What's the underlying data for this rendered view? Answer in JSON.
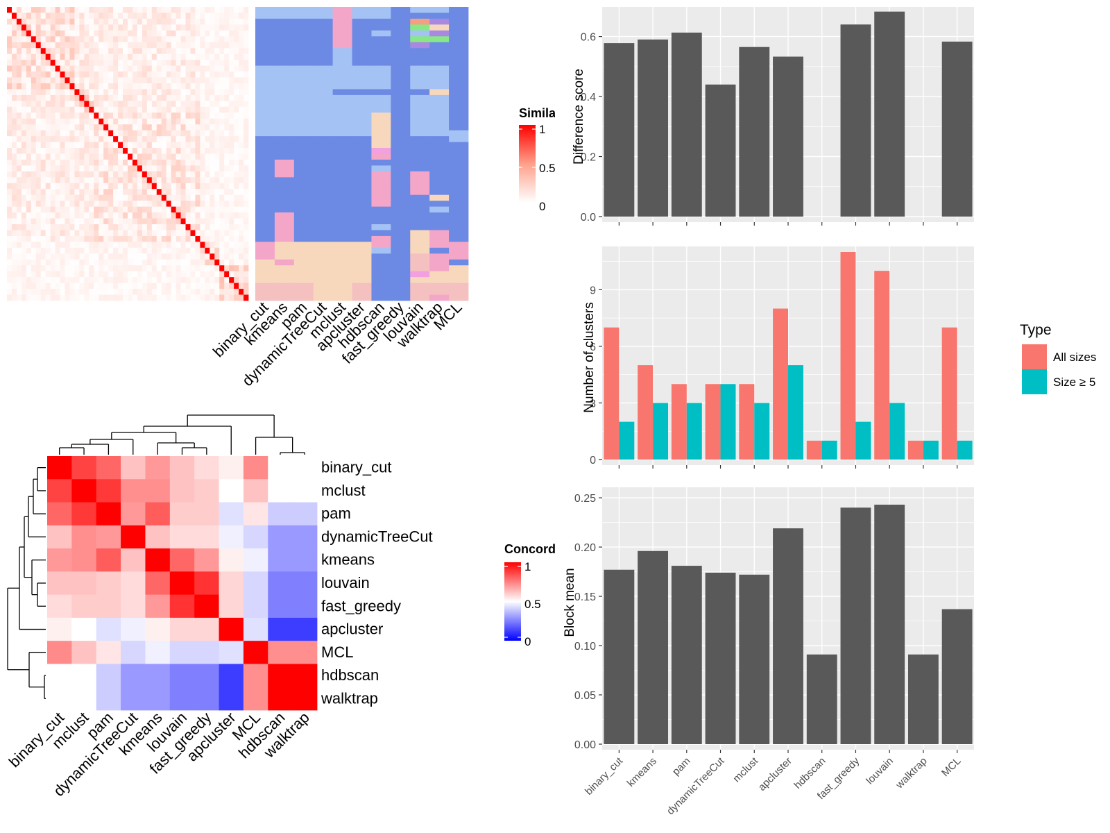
{
  "colors": {
    "panel_bg": "#ebebeb",
    "grid": "#ffffff",
    "bar_dark": "#595959",
    "all_sizes": "#f8766d",
    "size_ge5": "#00bfc4",
    "heat_high": "#ff0000",
    "heat_mid": "#ffffff",
    "heat_low": "#0000ff",
    "cluster_blue_dark": "#6c8ae4",
    "cluster_blue_light": "#a4c2f4",
    "cluster_pink": "#f4a6c8",
    "cluster_peach": "#f8d8bc",
    "cluster_salmon": "#f4c0c0",
    "cluster_magenta": "#f2a0e0",
    "cluster_green": "#88e888",
    "cluster_purple": "#a888e0",
    "cluster_orange": "#f4a080"
  },
  "methods": [
    "binary_cut",
    "kmeans",
    "pam",
    "dynamicTreeCut",
    "mclust",
    "apcluster",
    "hdbscan",
    "fast_greedy",
    "louvain",
    "walktrap",
    "MCL"
  ],
  "chart_data": [
    {
      "type": "heatmap",
      "id": "similarity-matrix",
      "legend_title": "Similarity",
      "legend_ticks": [
        "1",
        "0.5",
        "0"
      ],
      "n_terms": 50,
      "note_values": "term-by-term similarity, 1 on diagonal"
    },
    {
      "type": "heatmap",
      "id": "cluster-assignments",
      "columns": [
        "binary_cut",
        "kmeans",
        "pam",
        "dynamicTreeCut",
        "mclust",
        "apcluster",
        "hdbscan",
        "fast_greedy",
        "louvain",
        "walktrap",
        "MCL"
      ],
      "n_rows": 50
    },
    {
      "type": "heatmap",
      "id": "concordance",
      "legend_title": "Concordance",
      "legend_ticks": [
        "1",
        "0.5",
        "0"
      ],
      "order": [
        "binary_cut",
        "mclust",
        "pam",
        "dynamicTreeCut",
        "kmeans",
        "louvain",
        "fast_greedy",
        "apcluster",
        "MCL",
        "hdbscan",
        "walktrap"
      ],
      "values": [
        [
          1.0,
          0.87,
          0.8,
          0.62,
          0.7,
          0.62,
          0.57,
          0.53,
          0.73,
          0.5,
          0.5
        ],
        [
          0.87,
          1.0,
          0.89,
          0.72,
          0.72,
          0.62,
          0.6,
          0.5,
          0.62,
          0.5,
          0.5
        ],
        [
          0.8,
          0.89,
          1.0,
          0.7,
          0.82,
          0.6,
          0.6,
          0.44,
          0.55,
          0.4,
          0.4
        ],
        [
          0.62,
          0.72,
          0.7,
          1.0,
          0.62,
          0.57,
          0.57,
          0.47,
          0.42,
          0.3,
          0.3
        ],
        [
          0.7,
          0.72,
          0.82,
          0.62,
          1.0,
          0.8,
          0.7,
          0.53,
          0.47,
          0.3,
          0.3
        ],
        [
          0.62,
          0.62,
          0.6,
          0.57,
          0.8,
          1.0,
          0.9,
          0.58,
          0.42,
          0.25,
          0.25
        ],
        [
          0.57,
          0.6,
          0.6,
          0.57,
          0.7,
          0.9,
          1.0,
          0.58,
          0.42,
          0.25,
          0.25
        ],
        [
          0.53,
          0.5,
          0.44,
          0.47,
          0.53,
          0.58,
          0.58,
          1.0,
          0.44,
          0.12,
          0.12
        ],
        [
          0.73,
          0.62,
          0.55,
          0.42,
          0.47,
          0.42,
          0.42,
          0.44,
          1.0,
          0.72,
          0.72
        ],
        [
          0.5,
          0.5,
          0.4,
          0.3,
          0.3,
          0.25,
          0.25,
          0.12,
          0.72,
          1.0,
          1.0
        ],
        [
          0.5,
          0.5,
          0.4,
          0.3,
          0.3,
          0.25,
          0.25,
          0.12,
          0.72,
          1.0,
          1.0
        ]
      ]
    },
    {
      "type": "bar",
      "id": "difference-score",
      "categories": [
        "binary_cut",
        "kmeans",
        "pam",
        "dynamicTreeCut",
        "mclust",
        "apcluster",
        "hdbscan",
        "fast_greedy",
        "louvain",
        "walktrap",
        "MCL"
      ],
      "values": [
        0.578,
        0.59,
        0.613,
        0.44,
        0.565,
        0.533,
        null,
        0.64,
        0.683,
        null,
        0.583
      ],
      "ylabel": "Difference score",
      "ylim": [
        0,
        0.68
      ],
      "yticks": [
        0.0,
        0.2,
        0.4,
        0.6
      ],
      "ytick_labels": [
        "0.0",
        "0.2",
        "0.4",
        "0.6"
      ]
    },
    {
      "type": "bar",
      "id": "number-of-clusters",
      "categories": [
        "binary_cut",
        "kmeans",
        "pam",
        "dynamicTreeCut",
        "mclust",
        "apcluster",
        "hdbscan",
        "fast_greedy",
        "louvain",
        "walktrap",
        "MCL"
      ],
      "series": [
        {
          "name": "All sizes",
          "values": [
            7,
            5,
            4,
            4,
            4,
            8,
            1,
            11,
            10,
            1,
            7
          ]
        },
        {
          "name": "Size ≥ 5",
          "values": [
            2,
            3,
            3,
            4,
            3,
            5,
            1,
            2,
            3,
            1,
            1
          ]
        }
      ],
      "ylabel": "Number of clusters",
      "ylim": [
        0,
        11
      ],
      "yticks": [
        0,
        3,
        6,
        9
      ],
      "ytick_labels": [
        "0",
        "3",
        "6",
        "9"
      ],
      "legend_title": "Type",
      "legend_position": "right"
    },
    {
      "type": "bar",
      "id": "block-mean",
      "categories": [
        "binary_cut",
        "kmeans",
        "pam",
        "dynamicTreeCut",
        "mclust",
        "apcluster",
        "hdbscan",
        "fast_greedy",
        "louvain",
        "walktrap",
        "MCL"
      ],
      "values": [
        0.177,
        0.196,
        0.181,
        0.174,
        0.172,
        0.219,
        0.091,
        0.24,
        0.243,
        0.091,
        0.137
      ],
      "ylabel": "Block mean",
      "ylim": [
        0,
        0.255
      ],
      "yticks": [
        0.0,
        0.05,
        0.1,
        0.15,
        0.2,
        0.25
      ],
      "ytick_labels": [
        "0.00",
        "0.05",
        "0.10",
        "0.15",
        "0.20",
        "0.25"
      ]
    }
  ]
}
